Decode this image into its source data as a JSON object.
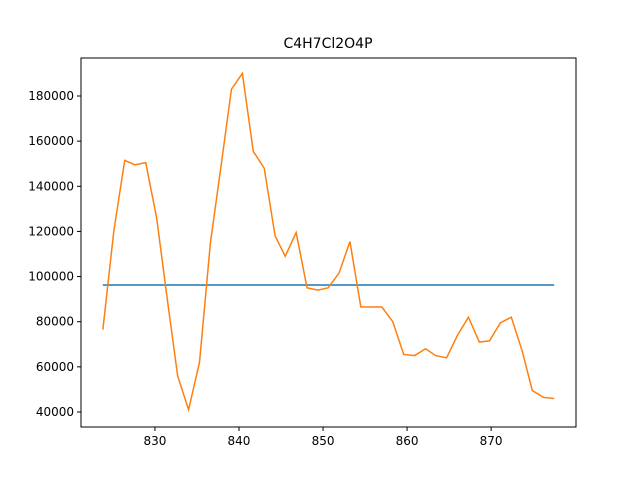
{
  "chart_data": {
    "type": "line",
    "title": "C4H7Cl2O4P",
    "xlim": [
      821.2,
      880.1
    ],
    "ylim": [
      33350,
      196840
    ],
    "xticks": [
      830,
      840,
      850,
      860,
      870
    ],
    "yticks": [
      40000,
      60000,
      80000,
      100000,
      120000,
      140000,
      160000,
      180000
    ],
    "series": [
      {
        "color": "#1f77b4",
        "x": [
          823.8,
          877.5
        ],
        "values": [
          96270,
          96270
        ]
      },
      {
        "color": "#ff7f0e",
        "x": [
          823.8,
          825.1,
          826.4,
          827.6,
          828.9,
          830.2,
          831.5,
          832.7,
          834.0,
          835.3,
          836.6,
          837.9,
          839.1,
          840.4,
          841.7,
          843.0,
          844.3,
          845.5,
          846.8,
          848.1,
          849.4,
          850.6,
          851.9,
          853.2,
          854.5,
          855.8,
          857.0,
          858.3,
          859.6,
          860.9,
          862.2,
          863.4,
          864.7,
          866.0,
          867.3,
          868.6,
          869.8,
          871.1,
          872.4,
          873.7,
          874.9,
          876.2,
          877.5
        ],
        "values": [
          76500,
          120000,
          151500,
          149500,
          150500,
          126000,
          89000,
          56000,
          41000,
          62000,
          115000,
          150000,
          183000,
          190000,
          155500,
          148000,
          118000,
          109000,
          119500,
          95000,
          94000,
          95000,
          101500,
          115500,
          86500,
          86500,
          86500,
          80000,
          65500,
          65000,
          68000,
          65000,
          64000,
          74000,
          82000,
          71000,
          71500,
          79500,
          82000,
          67000,
          49500,
          46500,
          46000
        ]
      }
    ]
  }
}
